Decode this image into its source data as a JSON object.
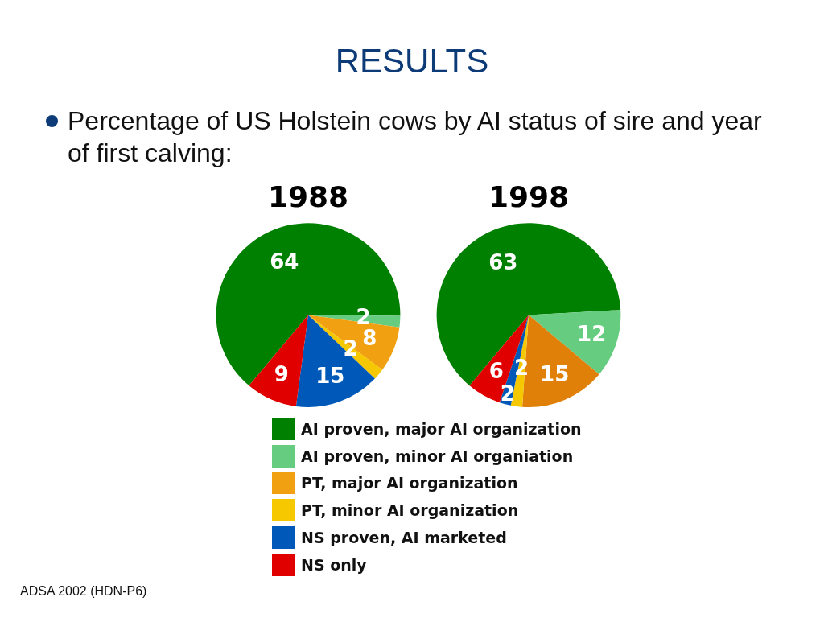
{
  "chart_data": [
    {
      "type": "other",
      "title": "RESULTS",
      "subtitle": "Percentage of US Holstein cows by AI status of sire and year of first calving:",
      "annotations": [
        "ADSA 2002 (HDN-P6)"
      ]
    },
    {
      "type": "pie",
      "title": "1988",
      "categories": [
        "AI proven, major AI organization",
        "AI proven, minor AI organiation",
        "PT, major AI organization",
        "PT, minor AI organization",
        "NS proven, AI marketed",
        "NS only"
      ],
      "values": [
        64,
        2,
        8,
        2,
        15,
        9
      ],
      "colors": [
        "#008000",
        "#66cc80",
        "#f0a010",
        "#f5c800",
        "#0058b8",
        "#e00000"
      ],
      "data_labels": true,
      "legend": "bottom"
    },
    {
      "type": "pie",
      "title": "1998",
      "categories": [
        null,
        null,
        null,
        null,
        null,
        null
      ],
      "values": [
        63,
        12,
        15,
        2,
        2,
        6
      ],
      "colors": [
        "#008000",
        "#66cc80",
        "#e08008",
        "#f5c800",
        "#0058b8",
        "#e00000"
      ],
      "data_labels": true
    }
  ]
}
